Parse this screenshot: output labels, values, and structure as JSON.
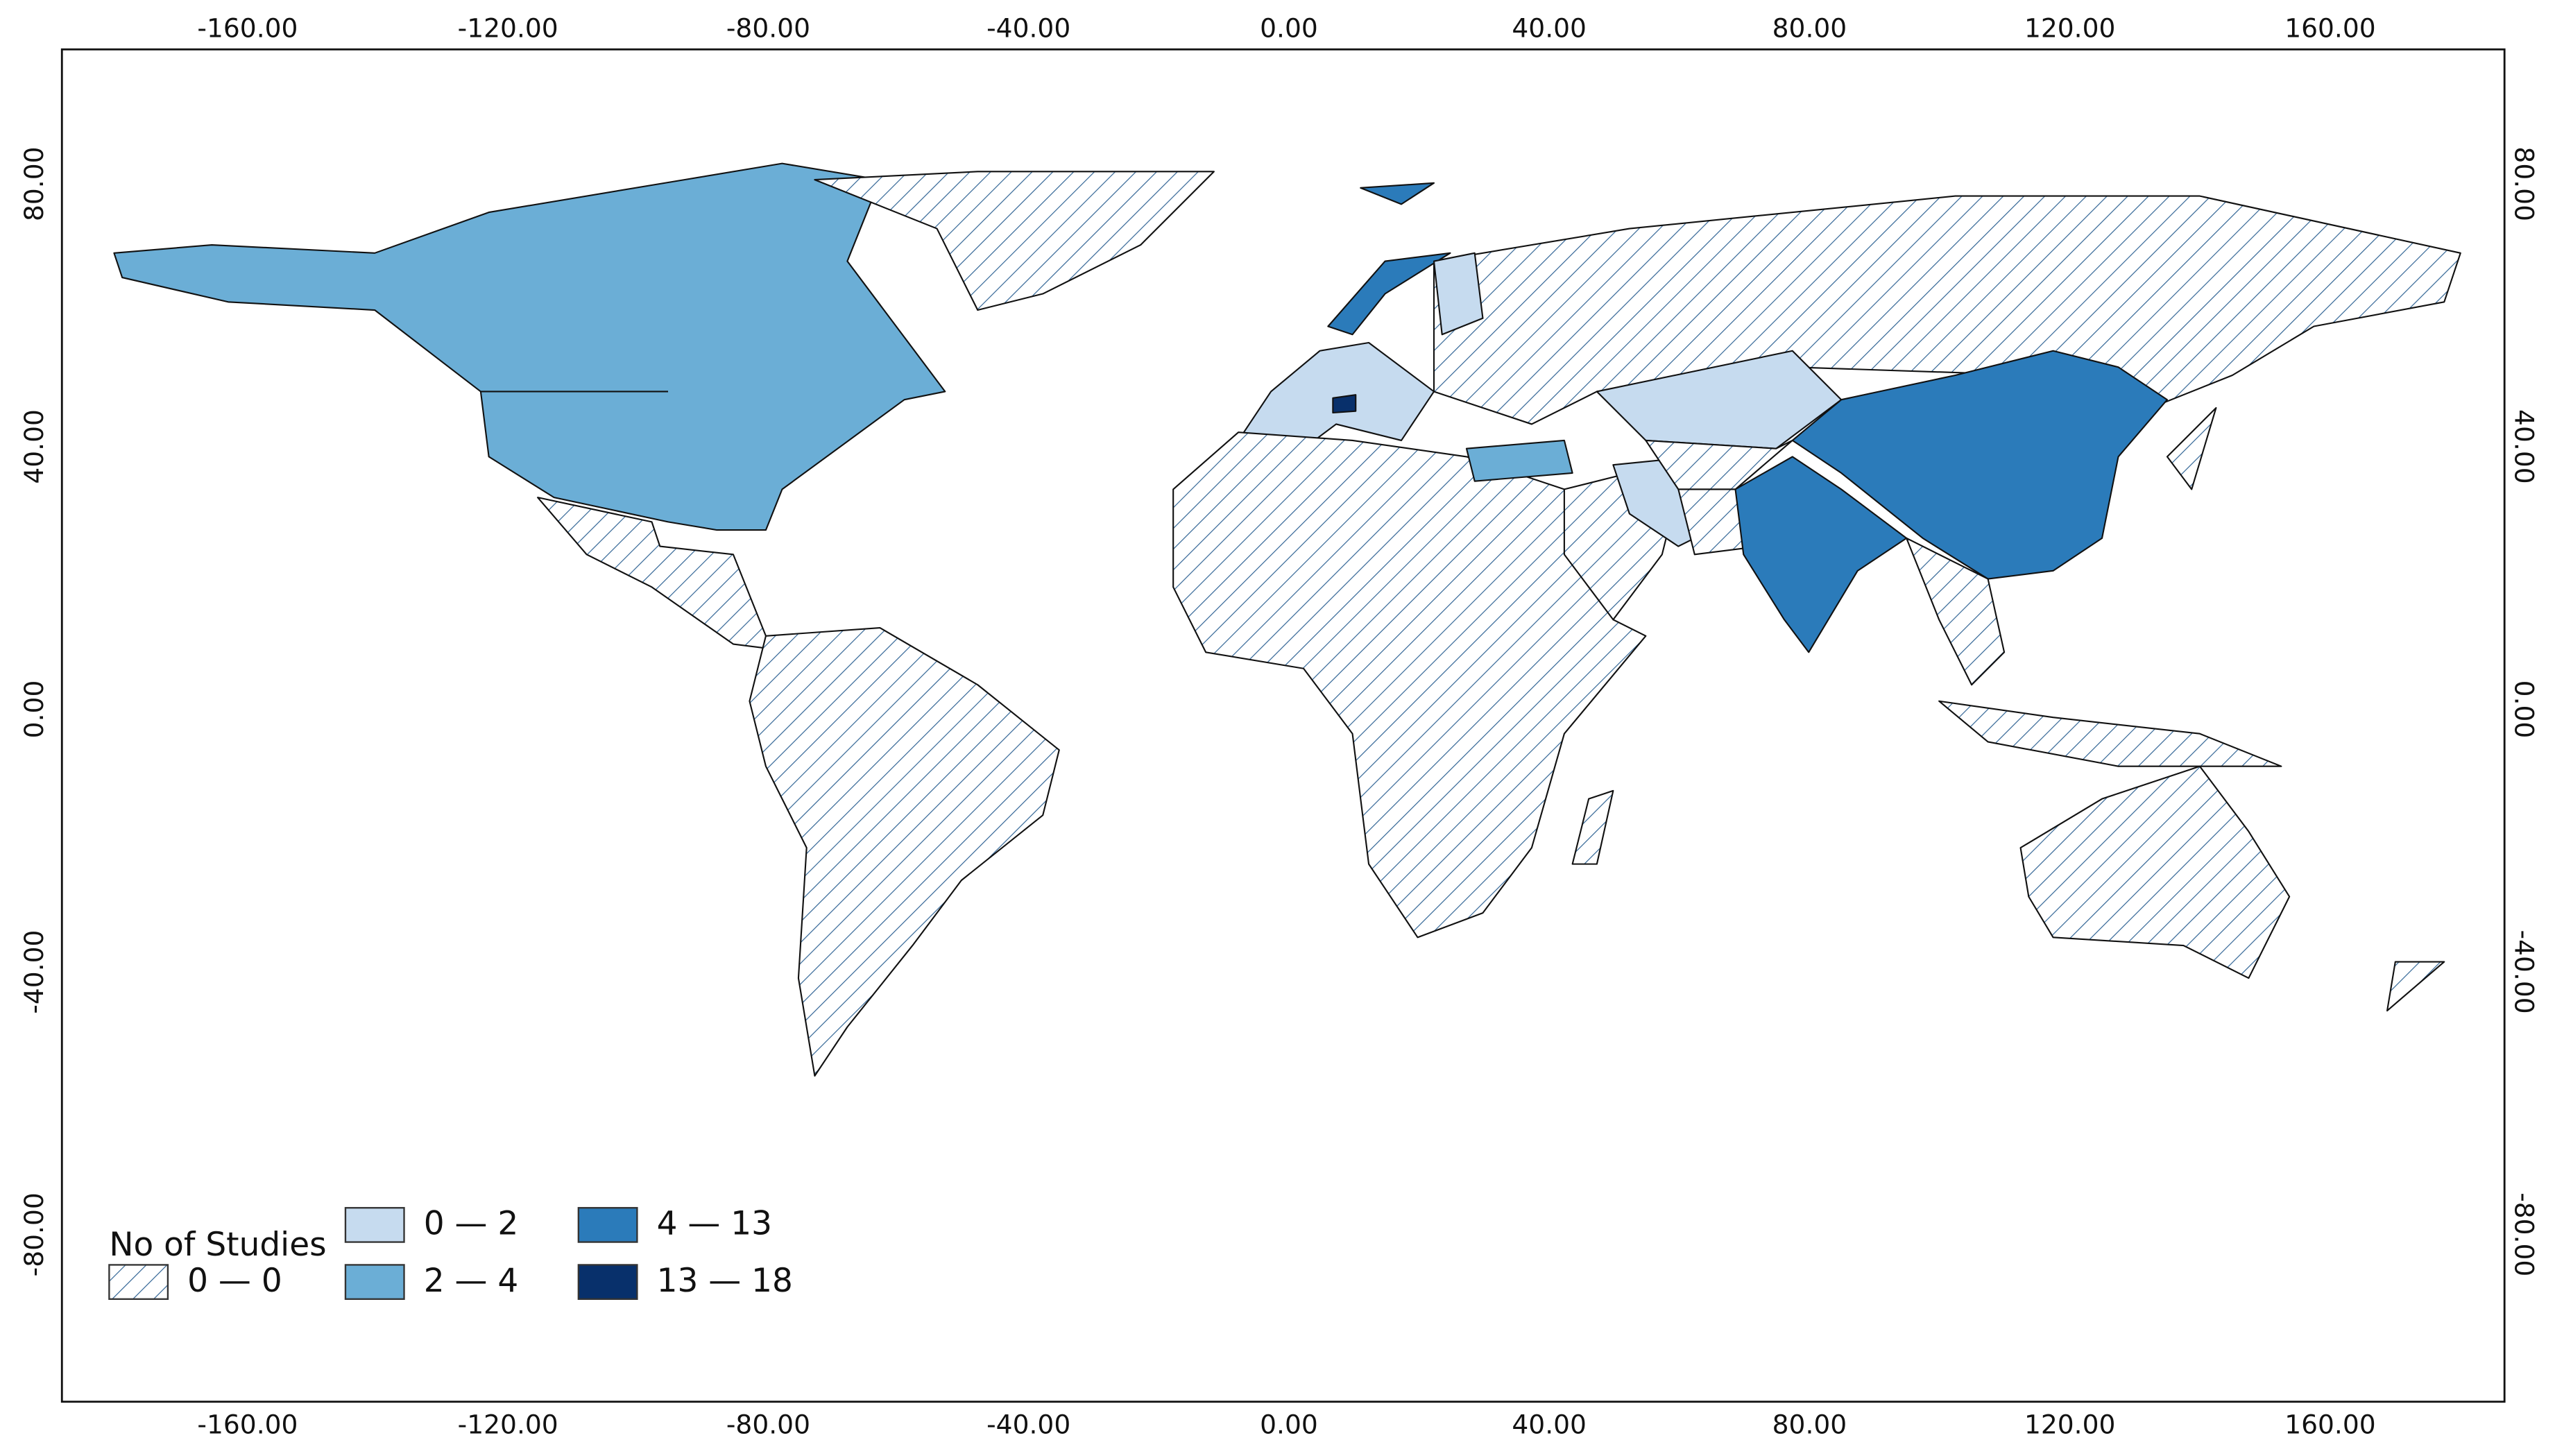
{
  "map": {
    "x_ticks": [
      {
        "value": -160,
        "label": "-160.00"
      },
      {
        "value": -120,
        "label": "-120.00"
      },
      {
        "value": -80,
        "label": "-80.00"
      },
      {
        "value": -40,
        "label": "-40.00"
      },
      {
        "value": 0,
        "label": "0.00"
      },
      {
        "value": 40,
        "label": "40.00"
      },
      {
        "value": 80,
        "label": "80.00"
      },
      {
        "value": 120,
        "label": "120.00"
      },
      {
        "value": 160,
        "label": "160.00"
      }
    ],
    "y_ticks": [
      {
        "value": 80,
        "label": "80.00"
      },
      {
        "value": 40,
        "label": "40.00"
      },
      {
        "value": 0,
        "label": "0.00"
      },
      {
        "value": -40,
        "label": "-40.00"
      },
      {
        "value": -80,
        "label": "-80.00"
      }
    ],
    "legend": {
      "title": "No of Studies",
      "classes": [
        {
          "label": "0 — 0",
          "hatch": "#2f6394"
        },
        {
          "label": "0 — 2",
          "color": "#c6dbef"
        },
        {
          "label": "2 — 4",
          "color": "#6baed6"
        },
        {
          "label": "4 — 13",
          "color": "#2b7bba"
        },
        {
          "label": "13 — 18",
          "color": "#08306b"
        }
      ]
    }
  }
}
